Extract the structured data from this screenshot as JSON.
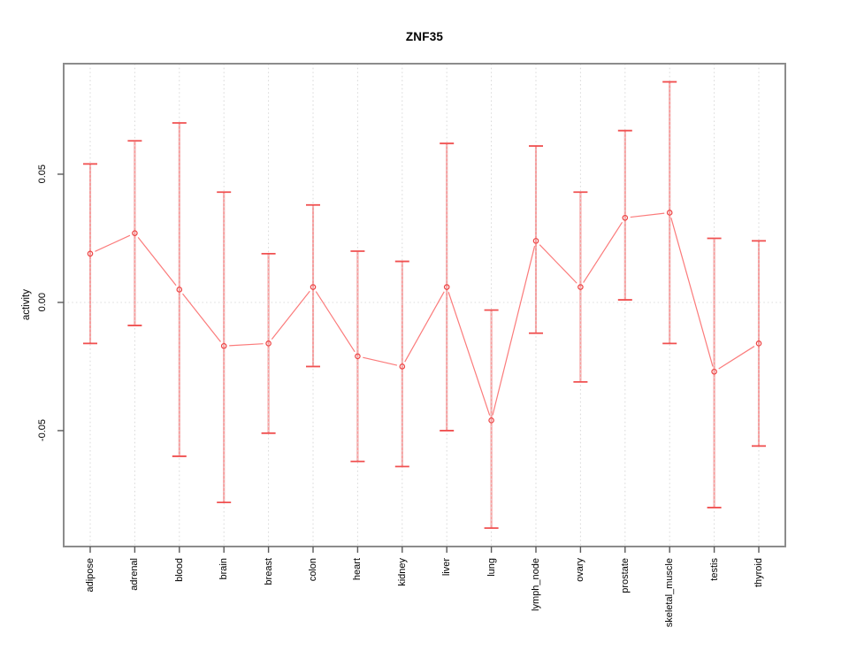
{
  "chart": {
    "title": "ZNF35",
    "ylabel": "activity"
  },
  "colors": {
    "series_line": "#fb7b7b",
    "point_stroke": "#ee4444",
    "error_bar": "#f47c7c",
    "error_cap": "#f05050",
    "box": "#8c8c8c",
    "tick": "#5a5a5a",
    "grid": "#d9d9d9",
    "zero_line": "#dedede",
    "text": "#000000",
    "background": "#ffffff"
  },
  "chart_data": {
    "type": "line",
    "title": "ZNF35",
    "xlabel": "",
    "ylabel": "activity",
    "legend": "none",
    "grid": "dotted vertical gridline at each category; dotted horizontal line at y=0",
    "point_marker": "open-circle",
    "categories": [
      "adipose",
      "adrenal",
      "blood",
      "brain",
      "breast",
      "colon",
      "heart",
      "kidney",
      "liver",
      "lung",
      "lymph_node",
      "ovary",
      "prostate",
      "skeletal_muscle",
      "testis",
      "thyroid"
    ],
    "series": [
      {
        "name": "activity",
        "values": [
          0.019,
          0.027,
          0.005,
          -0.017,
          -0.016,
          0.006,
          -0.021,
          -0.025,
          0.006,
          -0.046,
          0.024,
          0.006,
          0.033,
          0.035,
          -0.027,
          -0.016
        ],
        "error_upper": [
          0.054,
          0.063,
          0.07,
          0.043,
          0.019,
          0.038,
          0.02,
          0.016,
          0.062,
          -0.003,
          0.061,
          0.043,
          0.067,
          0.086,
          0.025,
          0.024
        ],
        "error_lower": [
          -0.016,
          -0.009,
          -0.06,
          -0.078,
          -0.051,
          -0.025,
          -0.062,
          -0.064,
          -0.05,
          -0.088,
          -0.012,
          -0.031,
          0.001,
          -0.016,
          -0.08,
          -0.056
        ]
      }
    ],
    "yticks": [
      -0.05,
      0.0,
      0.05
    ],
    "ytick_labels": [
      "-0.05",
      "0.00",
      "0.05"
    ],
    "ylim": [
      -0.0952,
      0.0931
    ]
  }
}
